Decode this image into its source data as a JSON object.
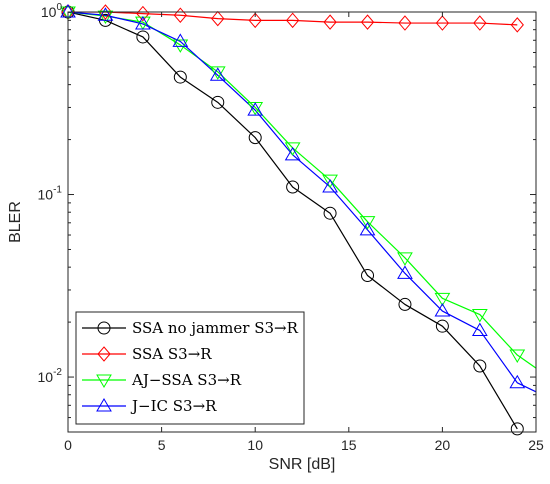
{
  "chart_data": {
    "type": "line",
    "xlabel": "SNR [dB]",
    "ylabel": "BLER",
    "xlim": [
      0,
      25
    ],
    "ylim": [
      0.005,
      1
    ],
    "yscale": "log",
    "x_ticks": [
      0,
      5,
      10,
      15,
      20,
      25
    ],
    "x_tick_labels": [
      "0",
      "5",
      "10",
      "15",
      "20",
      "25"
    ],
    "y_ticks": [
      0.01,
      0.1,
      1
    ],
    "y_tick_labels": [
      {
        "base": "10",
        "exp": "-2"
      },
      {
        "base": "10",
        "exp": "-1"
      },
      {
        "base": "10",
        "exp": "0"
      }
    ],
    "grid": false,
    "legend_position": "bottom-left",
    "series": [
      {
        "name": "SSA no jammer S3→R",
        "color": "#000000",
        "marker": "circle",
        "x": [
          0,
          2,
          4,
          6,
          8,
          10,
          12,
          14,
          16,
          18,
          20,
          22,
          24
        ],
        "values": [
          1.0,
          0.9,
          0.73,
          0.44,
          0.32,
          0.205,
          0.11,
          0.079,
          0.036,
          0.025,
          0.019,
          0.0115,
          0.0052
        ]
      },
      {
        "name": "SSA S3→R",
        "color": "#ff0000",
        "marker": "diamond",
        "x": [
          0,
          2,
          4,
          6,
          8,
          10,
          12,
          14,
          16,
          18,
          20,
          22,
          24
        ],
        "values": [
          1.0,
          1.0,
          0.98,
          0.96,
          0.92,
          0.9,
          0.9,
          0.88,
          0.88,
          0.87,
          0.87,
          0.87,
          0.85
        ]
      },
      {
        "name": "AJ−SSA S3→R",
        "color": "#00ff00",
        "marker": "triangle-down",
        "x": [
          0,
          2,
          4,
          6,
          8,
          10,
          12,
          14,
          16,
          18,
          20,
          22,
          24,
          25
        ],
        "values": [
          1.0,
          0.95,
          0.88,
          0.66,
          0.47,
          0.3,
          0.18,
          0.12,
          0.071,
          0.045,
          0.027,
          0.022,
          0.0132,
          0.0112
        ]
      },
      {
        "name": "J−IC S3→R",
        "color": "#0000ff",
        "marker": "triangle-up",
        "x": [
          0,
          2,
          4,
          6,
          8,
          10,
          12,
          14,
          16,
          18,
          20,
          22,
          24,
          25
        ],
        "values": [
          1.0,
          0.96,
          0.86,
          0.69,
          0.45,
          0.29,
          0.165,
          0.11,
          0.064,
          0.037,
          0.023,
          0.018,
          0.0093,
          0.0083
        ]
      }
    ]
  }
}
